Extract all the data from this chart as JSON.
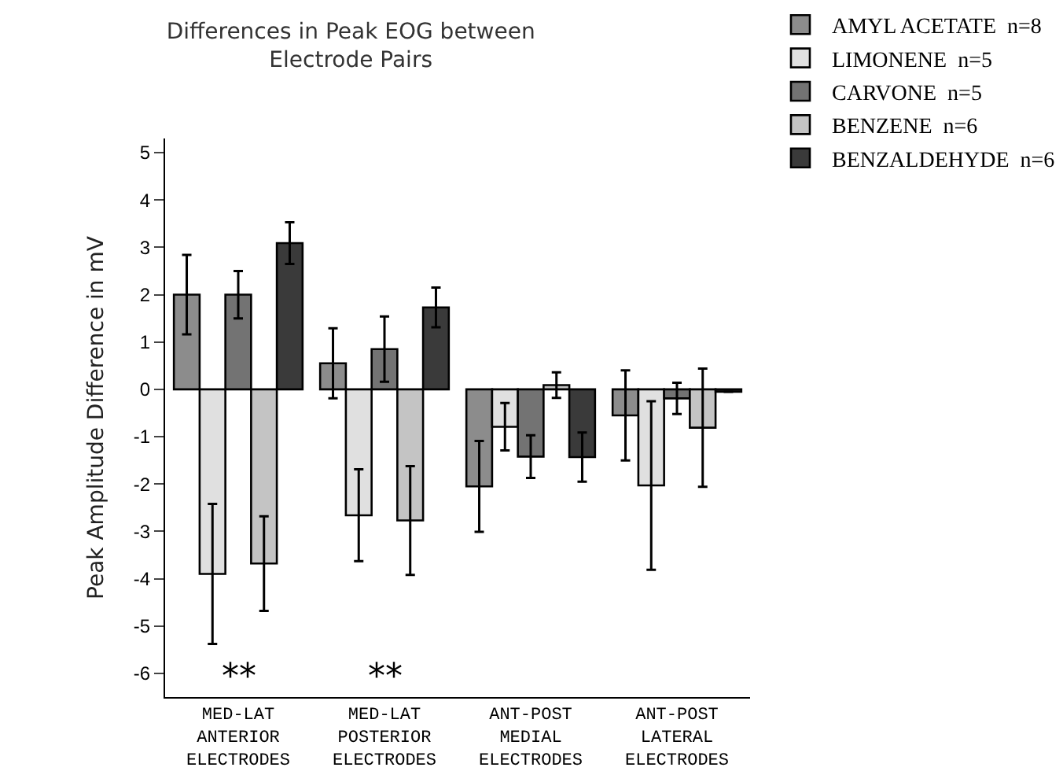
{
  "chart_data": {
    "type": "bar",
    "title": "Differences in Peak EOG between\nElectrode Pairs",
    "ylabel": "Peak Amplitude Difference in mV",
    "categories": [
      "MED-LAT ANTERIOR ELECTRODES",
      "MED-LAT POSTERIOR ELECTRODES",
      "ANT-POST MEDIAL ELECTRODES",
      "ANT-POST LATERAL ELECTRODES"
    ],
    "series": [
      {
        "name": "AMYL ACETATE  n=8",
        "color": "#8c8c8c",
        "values": [
          2.0,
          0.55,
          -2.05,
          -0.55
        ],
        "errors": [
          0.84,
          0.74,
          0.96,
          0.95
        ]
      },
      {
        "name": "LIMONENE  n=5",
        "color": "#e0e0e0",
        "values": [
          -3.9,
          -2.66,
          -0.79,
          -2.03
        ],
        "errors": [
          1.48,
          0.97,
          0.5,
          1.78
        ]
      },
      {
        "name": "CARVONE  n=5",
        "color": "#737373",
        "values": [
          2.0,
          0.85,
          -1.42,
          -0.19
        ],
        "errors": [
          0.5,
          0.69,
          0.45,
          0.33
        ]
      },
      {
        "name": "BENZENE  n=6",
        "color": "#c4c4c4",
        "values": [
          -3.68,
          -2.77,
          0.09,
          -0.81
        ],
        "errors": [
          1.0,
          1.15,
          0.27,
          1.25
        ]
      },
      {
        "name": "BENZALDEHYDE  n=6",
        "color": "#3a3a3a",
        "values": [
          3.09,
          1.73,
          -1.43,
          -0.05
        ],
        "errors": [
          0.44,
          0.42,
          0.52,
          null
        ]
      }
    ],
    "ylim": [
      -6.5,
      5.3
    ],
    "yticks": [
      -6,
      -5,
      -4,
      -3,
      -2,
      -1,
      0,
      1,
      2,
      3,
      4,
      5
    ],
    "annotations": [
      "**",
      "**"
    ],
    "legend": "top right"
  }
}
